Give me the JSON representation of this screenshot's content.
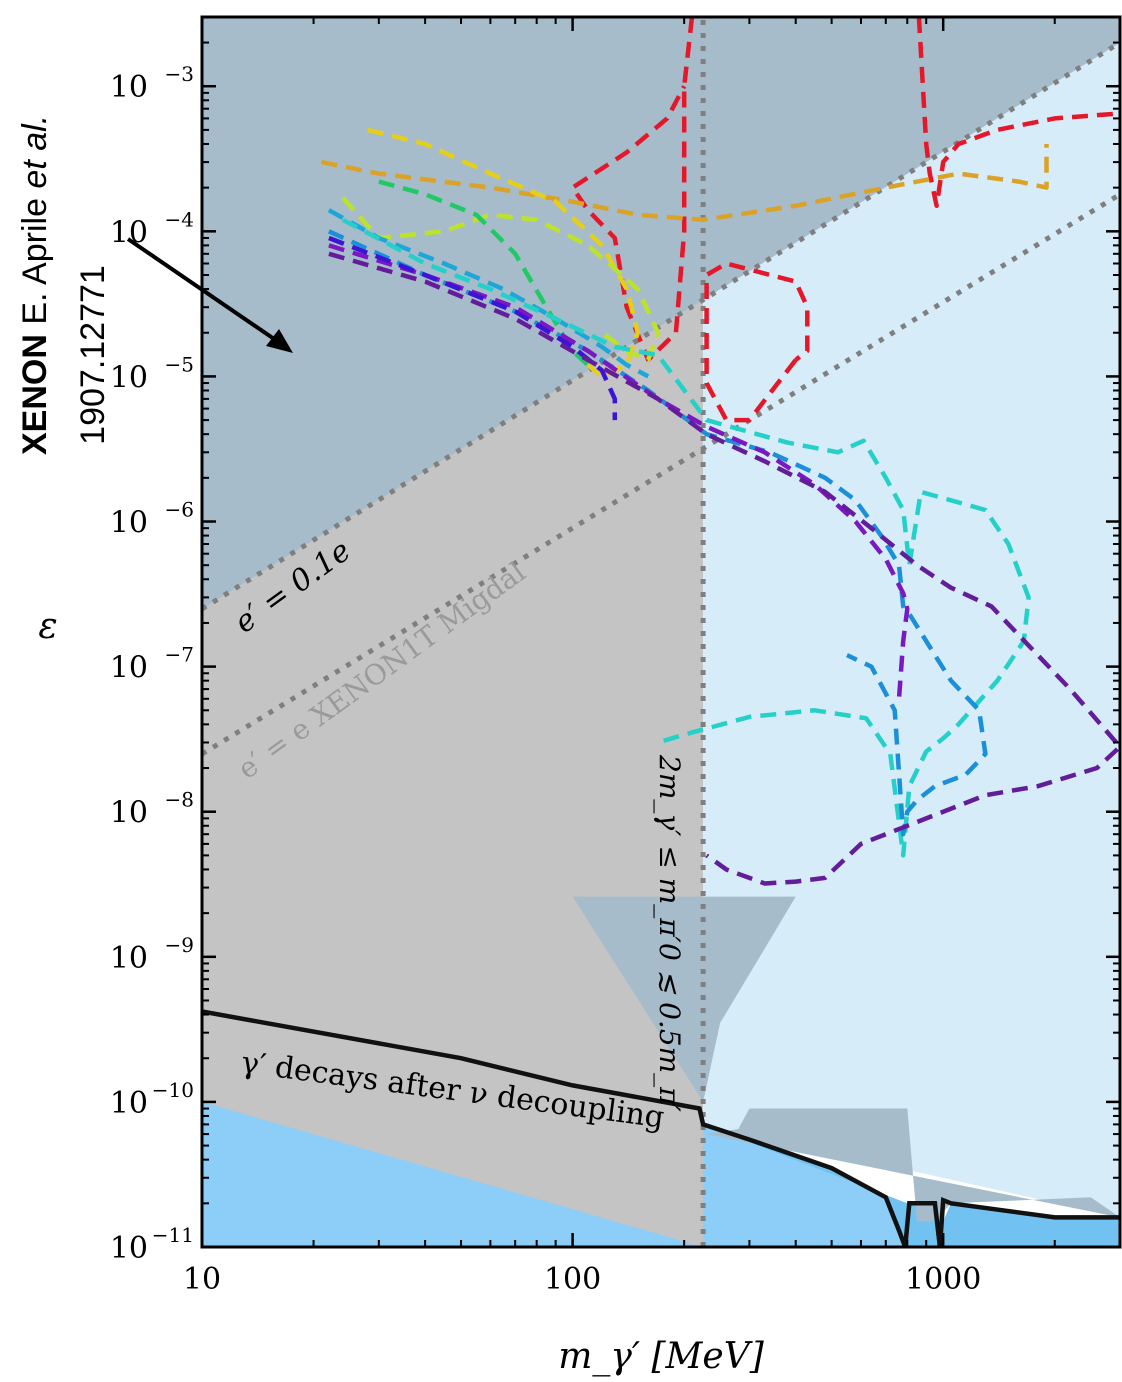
{
  "chart_data": {
    "type": "line",
    "xscale": "log",
    "yscale": "log",
    "xlim": [
      10,
      3000
    ],
    "ylim": [
      1e-11,
      0.003
    ],
    "xlabel": "m_γ′ [MeV]",
    "ylabel": "ε",
    "x_ticks": [
      {
        "value": 10,
        "label": "10"
      },
      {
        "value": 100,
        "label": "100"
      },
      {
        "value": 1000,
        "label": "1000"
      }
    ],
    "y_ticks": [
      {
        "value": 1e-11,
        "base": "10",
        "exp": "−11"
      },
      {
        "value": 1e-10,
        "base": "10",
        "exp": "−10"
      },
      {
        "value": 1e-09,
        "base": "10",
        "exp": "−9"
      },
      {
        "value": 1e-08,
        "base": "10",
        "exp": "−8"
      },
      {
        "value": 1e-07,
        "base": "10",
        "exp": "−7"
      },
      {
        "value": 1e-06,
        "base": "10",
        "exp": "−6"
      },
      {
        "value": 1e-05,
        "base": "10",
        "exp": "−5"
      },
      {
        "value": 0.0001,
        "base": "10",
        "exp": "−4"
      },
      {
        "value": 0.001,
        "base": "10",
        "exp": "−3"
      }
    ],
    "annotations": {
      "xenon_bold": "XENON",
      "xenon_author": " E. Aprile ",
      "xenon_etal": "et al.",
      "xenon_arxiv": "1907.12771",
      "line_01": "e′ = 0.1e",
      "line_xenon1t": "e′ = e XENON1T Migdal",
      "threshold": "2m_γ′ ≤ m_π′0 ≲ 0.5m_π′",
      "decay": "γ′ decays after ν decoupling"
    },
    "reference_lines": [
      {
        "name": "e′ = 0.1e",
        "points": [
          [
            10,
            2.5e-07
          ],
          [
            3000,
            0.002
          ]
        ],
        "style": "dotted",
        "color": "#7f7f7f"
      },
      {
        "name": "e′ = e XENON1T Migdal",
        "points": [
          [
            10,
            2.5e-08
          ],
          [
            3000,
            0.00018
          ]
        ],
        "style": "dotted",
        "color": "#7f7f7f"
      },
      {
        "name": "2m_γ′ threshold",
        "points": [
          [
            225,
            1e-11
          ],
          [
            225,
            0.003
          ]
        ],
        "style": "dotted",
        "color": "#7f7f7f"
      }
    ],
    "regions": [
      {
        "name": "decay",
        "color": "#8ccef7",
        "points": [
          [
            10,
            4.2e-10
          ],
          [
            50,
            2e-10
          ],
          [
            100,
            1.3e-10
          ],
          [
            220,
            9e-11
          ],
          [
            225,
            7e-11
          ],
          [
            300,
            5.5e-11
          ],
          [
            500,
            3.5e-11
          ],
          [
            700,
            2.2e-11
          ],
          [
            760,
            1.3e-11
          ],
          [
            790,
            1e-11
          ],
          [
            10,
            1e-11
          ]
        ]
      },
      {
        "name": "decay-right",
        "color": "#72c2f1",
        "points": [
          [
            225,
            7e-11
          ],
          [
            300,
            5.5e-11
          ],
          [
            500,
            3.5e-11
          ],
          [
            700,
            2.2e-11
          ],
          [
            760,
            1.3e-11
          ],
          [
            790,
            1e-11
          ],
          [
            3000,
            1e-11
          ],
          [
            3000,
            1.6e-11
          ],
          [
            2000,
            1.6e-11
          ],
          [
            1050,
            2e-11
          ],
          [
            1000,
            1.5e-11
          ],
          [
            960,
            2.1e-11
          ],
          [
            800,
            2e-11
          ]
        ]
      },
      {
        "name": "gray-migdal",
        "color": "#c4c4c4",
        "points": [
          [
            10,
            1e-10
          ],
          [
            10,
            0.003
          ],
          [
            225,
            0.003
          ],
          [
            225,
            1e-11
          ]
        ]
      },
      {
        "name": "light-blue",
        "color": "#d7ecf9",
        "points": [
          [
            225,
            0.003
          ],
          [
            3000,
            0.003
          ],
          [
            3000,
            1.6e-11
          ],
          [
            225,
            7e-11
          ]
        ]
      },
      {
        "name": "dark-upper",
        "color": "#a7bccb",
        "points": [
          [
            10,
            0.003
          ],
          [
            3000,
            0.003
          ],
          [
            3000,
            0.002
          ],
          [
            10,
            2.5e-07
          ]
        ]
      },
      {
        "name": "dark-bottom",
        "color": "#a7bccb",
        "points": [
          [
            230,
            6e-11
          ],
          [
            280,
            6.5e-11
          ],
          [
            300,
            9e-11
          ],
          [
            800,
            9e-11
          ],
          [
            850,
            1.5e-11
          ],
          [
            950,
            1.5e-11
          ],
          [
            1050,
            2e-11
          ],
          [
            2500,
            2.2e-11
          ],
          [
            3000,
            1.6e-11
          ]
        ]
      },
      {
        "name": "dark-lower-mid",
        "color": "#a7bccb",
        "points": [
          [
            100,
            2.6e-09
          ],
          [
            400,
            2.6e-09
          ],
          [
            320,
            1e-09
          ],
          [
            250,
            3.5e-10
          ],
          [
            225,
            1e-10
          ]
        ]
      }
    ],
    "series": [
      {
        "color": "#e4182a",
        "x": [
          400,
          300,
          260,
          230,
          230,
          260,
          400,
          430,
          430,
          400
        ],
        "y": [
          1.3e-05,
          5e-06,
          5e-06,
          9e-06,
          5e-05,
          6e-05,
          4.5e-05,
          3e-05,
          1.5e-05,
          1.3e-05
        ]
      },
      {
        "color": "#e4182a",
        "x": [
          210,
          200,
          200,
          190,
          160,
          140,
          130,
          110,
          100,
          140,
          180,
          200
        ],
        "y": [
          0.003,
          0.001,
          0.0001,
          2e-05,
          1.3e-05,
          3e-05,
          9e-05,
          0.00014,
          0.0002,
          0.00035,
          0.0006,
          0.001
        ]
      },
      {
        "color": "#e4182a",
        "x": [
          860,
          900,
          920,
          960,
          1000,
          1100,
          1400,
          2000,
          3000
        ],
        "y": [
          0.003,
          0.0004,
          0.00025,
          0.00015,
          0.0003,
          0.0004,
          0.0005,
          0.0006,
          0.00065
        ]
      },
      {
        "color": "#dba228",
        "x": [
          21,
          30,
          60,
          100,
          150,
          225,
          400,
          700,
          1100,
          1600,
          1900,
          1900
        ],
        "y": [
          0.0003,
          0.00025,
          0.0002,
          0.00016,
          0.00013,
          0.00012,
          0.00015,
          0.0002,
          0.00025,
          0.00022,
          0.0002,
          0.0004
        ]
      },
      {
        "color": "#e6cf19",
        "x": [
          28,
          40,
          60,
          90,
          120,
          140,
          150,
          140,
          120,
          110
        ],
        "y": [
          0.0005,
          0.0004,
          0.00025,
          0.00016,
          8e-05,
          4e-05,
          2e-05,
          1.2e-05,
          1e-05,
          1.2e-05
        ]
      },
      {
        "color": "#bde22b",
        "x": [
          24,
          30,
          45,
          60,
          80,
          110,
          150,
          170,
          160,
          140,
          120
        ],
        "y": [
          0.00017,
          9e-05,
          0.0001,
          0.00013,
          0.00012,
          8e-05,
          4e-05,
          2e-05,
          1.3e-05,
          1.5e-05,
          2e-05
        ]
      },
      {
        "color": "#21c966",
        "x": [
          30,
          40,
          55,
          70,
          85,
          100,
          110
        ],
        "y": [
          0.00022,
          0.00018,
          0.00013,
          7e-05,
          3e-05,
          1.5e-05,
          1.2e-05
        ]
      },
      {
        "color": "#1fa6d8",
        "x": [
          22,
          30,
          45,
          65,
          90,
          120,
          140,
          160
        ],
        "y": [
          0.00014,
          9e-05,
          6e-05,
          4e-05,
          2.5e-05,
          1.6e-05,
          1.2e-05,
          1e-05
        ]
      },
      {
        "color": "#25d0c9",
        "x": [
          24,
          40,
          60,
          90,
          130,
          170,
          230,
          380,
          520,
          610,
          700,
          780,
          810,
          870,
          1050,
          1300,
          1500,
          1700,
          1650,
          1400,
          1100,
          1000,
          900,
          810,
          780,
          720,
          620,
          450,
          300,
          200,
          170
        ],
        "y": [
          0.00012,
          6e-05,
          4e-05,
          2.5e-05,
          1.6e-05,
          1.4e-05,
          5e-06,
          3.5e-06,
          3e-06,
          3.6e-06,
          2e-06,
          1.2e-06,
          5e-07,
          1.6e-06,
          1.4e-06,
          1.2e-06,
          7e-07,
          3e-07,
          1.5e-07,
          8e-08,
          4e-08,
          3.2e-08,
          2.6e-08,
          1.5e-08,
          5e-09,
          2.5e-08,
          4.4e-08,
          5e-08,
          4.5e-08,
          3.4e-08,
          3e-08
        ]
      },
      {
        "color": "#1b8fd7",
        "x": [
          22,
          40,
          70,
          110,
          160,
          230,
          340,
          480,
          580,
          680,
          760,
          780,
          820,
          900,
          1050,
          1250,
          1300,
          1150,
          950,
          850,
          800,
          780,
          740,
          640,
          550
        ],
        "y": [
          0.0001,
          5e-05,
          2.8e-05,
          1.5e-05,
          8e-06,
          4e-06,
          3e-06,
          2e-06,
          1.4e-06,
          8e-07,
          5e-07,
          2.6e-07,
          2.2e-07,
          1.5e-07,
          8e-08,
          5e-08,
          2.5e-08,
          1.8e-08,
          1.5e-08,
          1.2e-08,
          1e-08,
          7e-09,
          5e-08,
          1e-07,
          1.2e-07
        ]
      },
      {
        "color": "#7a19c1",
        "x": [
          22,
          40,
          70,
          110,
          170,
          230,
          330,
          450,
          580,
          700,
          780,
          800,
          780,
          760
        ],
        "y": [
          8e-05,
          5e-05,
          3e-05,
          1.5e-05,
          7e-06,
          4.5e-06,
          3e-06,
          1.8e-06,
          1e-06,
          5.5e-07,
          3.2e-07,
          2.5e-07,
          1.5e-07,
          6e-08
        ]
      },
      {
        "color": "#3d14d6",
        "x": [
          22,
          40,
          70,
          100,
          120,
          130,
          130
        ],
        "y": [
          9e-05,
          5e-05,
          2.8e-05,
          1.6e-05,
          1.1e-05,
          7e-06,
          5e-06
        ]
      },
      {
        "color": "#641d9a",
        "x": [
          22,
          40,
          70,
          110,
          170,
          230,
          330,
          480,
          640,
          850,
          1050,
          1350,
          1700,
          2200,
          3000,
          2600,
          1800,
          1300,
          800,
          600,
          480,
          400,
          330,
          260,
          230
        ],
        "y": [
          7e-05,
          4.5e-05,
          2.5e-05,
          1.3e-05,
          7e-06,
          4e-06,
          2.6e-06,
          1.6e-06,
          9e-07,
          5e-07,
          3.5e-07,
          2.6e-07,
          1.4e-07,
          7e-08,
          2.8e-08,
          2e-08,
          1.5e-08,
          1.3e-08,
          8e-09,
          6e-09,
          3.5e-09,
          3.3e-09,
          3.2e-09,
          4e-09,
          5e-09
        ]
      }
    ],
    "boundary": {
      "name": "ν decoupling",
      "color": "#111111",
      "x": [
        10,
        50,
        100,
        220,
        225,
        300,
        500,
        700,
        760,
        790,
        810,
        950,
        980,
        1000,
        1050,
        2000,
        3000
      ],
      "y": [
        4.2e-10,
        2e-10,
        1.3e-10,
        9e-11,
        7e-11,
        5.5e-11,
        3.5e-11,
        2.2e-11,
        1.3e-11,
        1e-11,
        2e-11,
        2e-11,
        1e-11,
        2.1e-11,
        2e-11,
        1.6e-11,
        1.6e-11
      ]
    }
  }
}
